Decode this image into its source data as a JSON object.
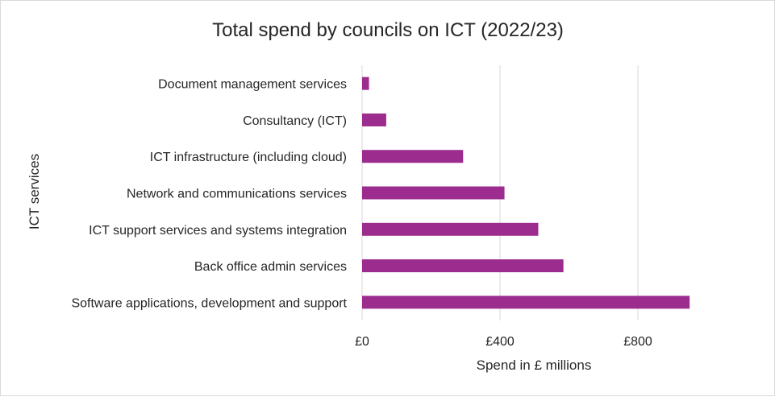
{
  "chart_data": {
    "type": "bar",
    "orientation": "horizontal",
    "title": "Total spend by councils on ICT (2022/23)",
    "xlabel": "Spend in £ millions",
    "ylabel": "ICT services",
    "categories": [
      "Document management services",
      "Consultancy (ICT)",
      "ICT infrastructure (including cloud)",
      "Network and communications services",
      "ICT support services and systems integration",
      "Back office admin services",
      "Software applications, development and support"
    ],
    "values": [
      20,
      70,
      293,
      413,
      511,
      584,
      950
    ],
    "xlim": [
      0,
      1000
    ],
    "xticks": [
      0,
      400,
      800
    ],
    "xtick_labels": [
      "£0",
      "£400",
      "£800"
    ],
    "grid": "vertical",
    "bar_color": "#9c2c8e"
  }
}
